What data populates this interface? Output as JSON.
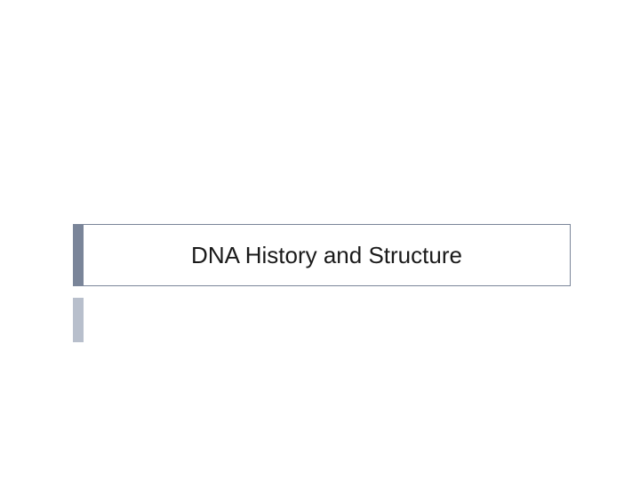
{
  "slide": {
    "title": "DNA History and Structure",
    "subtitle": "",
    "title_accent_color": "#7a8599",
    "subtitle_accent_color": "#b8bfcc",
    "border_color": "#7a8599",
    "title_fontsize": 26,
    "subtitle_fontsize": 18,
    "background_color": "#ffffff",
    "title_text_color": "#1a1a1a"
  }
}
